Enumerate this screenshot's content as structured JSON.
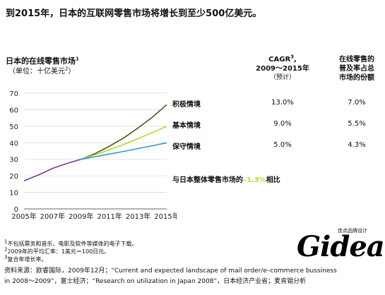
{
  "headline": "到2015年，日本的互联网零售市场将增长到至少500亿美元。",
  "chart_data": {
    "type": "line",
    "title": "日本的在线零售市场",
    "title_sup": "1",
    "unit": "（单位：十亿美元",
    "unit_sup": "2",
    "unit_close": "）",
    "x": [
      2005,
      2006,
      2007,
      2008,
      2009,
      2010,
      2011,
      2012,
      2013,
      2014,
      2015
    ],
    "x_ticks": [
      "2005年",
      "2007年",
      "2009年",
      "2011年",
      "2013年",
      "2015年"
    ],
    "x_tick_values": [
      2005,
      2007,
      2009,
      2011,
      2013,
      2015
    ],
    "y_ticks": [
      "0",
      "10",
      "20",
      "30",
      "40",
      "50",
      "60",
      "70"
    ],
    "ylim": [
      0,
      70
    ],
    "xlim": [
      2005,
      2015
    ],
    "grid": true,
    "history": {
      "color": "#7a3aa0",
      "x": [
        2005,
        2006,
        2007,
        2008,
        2009
      ],
      "values": [
        17,
        20.5,
        24.5,
        27.5,
        30
      ]
    },
    "series": [
      {
        "name": "积极情境",
        "color": "#4a5e1e",
        "x": [
          2009,
          2010,
          2011,
          2012,
          2013,
          2014,
          2015
        ],
        "values": [
          30,
          33.5,
          38,
          43,
          49,
          55.5,
          63
        ]
      },
      {
        "name": "基本情境",
        "color": "#c3d12d",
        "x": [
          2009,
          2010,
          2011,
          2012,
          2013,
          2014,
          2015
        ],
        "values": [
          30,
          32.8,
          35.8,
          39,
          42.5,
          46.2,
          50
        ]
      },
      {
        "name": "保守情境",
        "color": "#2f9ac7",
        "x": [
          2009,
          2010,
          2011,
          2012,
          2013,
          2014,
          2015
        ],
        "values": [
          30,
          31.6,
          33.2,
          34.8,
          36.5,
          38.2,
          40
        ]
      }
    ]
  },
  "columns": {
    "cagr": {
      "label": "CAGR",
      "label_sup": "3",
      "label_tail": ",",
      "line2": "2009～2015年",
      "line3": "（预计）"
    },
    "share": {
      "line1": "在线零售的",
      "line2": "普及率占总",
      "line3": "市场的份额"
    }
  },
  "rows": [
    {
      "label": "积极情境",
      "cagr": "13.0%",
      "share": "7.0%"
    },
    {
      "label": "基本情境",
      "cagr": "9.0%",
      "share": "5.5%"
    },
    {
      "label": "保守情境",
      "cagr": "5.0%",
      "share": "4.3%"
    }
  ],
  "note": {
    "prefix": "与日本整体零售市场的",
    "value": "–1.3%",
    "suffix": "相比"
  },
  "footnotes": [
    {
      "num": "1",
      "text": "不包括票务和音乐、电影及软件等媒体的电子下载。"
    },
    {
      "num": "2",
      "text": "2009年的平均汇率：1美元＝100日元。"
    },
    {
      "num": "3",
      "text": "复合年增长率。"
    }
  ],
  "source": {
    "line1": "资料来源：欧睿国际，2009年12月；“Current and expected landscape of mail order/e–commerce bussiness",
    "line2": "in 2008～2009”，富士经济；“Research on utilization in Japan 2008”，日本经济产业省；麦肯锡分析"
  },
  "logo": {
    "text": "Gidea",
    "tagline": "佳点品牌设计"
  }
}
